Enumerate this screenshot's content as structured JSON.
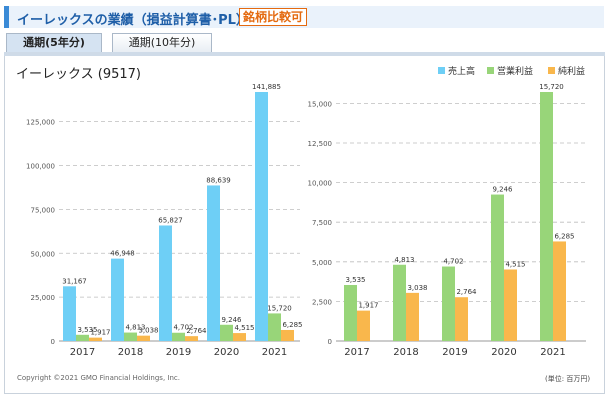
{
  "header": {
    "title": "イーレックスの業績（損益計算書･PL）",
    "compare_label": "銘柄比較可",
    "accent": "#3a8ad6"
  },
  "tabs": [
    {
      "label": "通期(5年分)",
      "active": true
    },
    {
      "label": "通期(10年分)",
      "active": false
    }
  ],
  "company": "イーレックス (9517)",
  "copyright": "Copyright ©2021 GMO Financial Holdings, Inc.",
  "unit_label": "(単位: 百万円)",
  "colors": {
    "sales": "#6ecff6",
    "operating": "#98d579",
    "net": "#f9b74c"
  },
  "chart_data": [
    {
      "type": "bar",
      "categories": [
        "2017",
        "2018",
        "2019",
        "2020",
        "2021"
      ],
      "series": [
        {
          "name": "売上高",
          "values": [
            31167,
            46948,
            65827,
            88639,
            141885
          ]
        },
        {
          "name": "営業利益",
          "values": [
            3535,
            4813,
            4702,
            9246,
            15720
          ]
        },
        {
          "name": "純利益",
          "values": [
            1917,
            3038,
            2764,
            4515,
            6285
          ]
        }
      ],
      "ylim": [
        0,
        141885
      ],
      "yticks": [
        0,
        25000,
        50000,
        75000,
        100000,
        125000
      ],
      "ytick_labels": [
        "0",
        "25,000",
        "50,000",
        "75,000",
        "100,000",
        "125,000"
      ],
      "value_labels": [
        [
          "31,167",
          "46,948",
          "65,827",
          "88,639",
          "141,885"
        ],
        [
          "3,535",
          "4,813",
          "4,702",
          "9,246",
          "15,720"
        ],
        [
          "1,917",
          "3,038",
          "2,764",
          "4,515",
          "6,285"
        ]
      ],
      "grid": true
    },
    {
      "type": "bar",
      "categories": [
        "2017",
        "2018",
        "2019",
        "2020",
        "2021"
      ],
      "series": [
        {
          "name": "営業利益",
          "values": [
            3535,
            4813,
            4702,
            9246,
            15720
          ]
        },
        {
          "name": "純利益",
          "values": [
            1917,
            3038,
            2764,
            4515,
            6285
          ]
        }
      ],
      "ylim": [
        0,
        15720
      ],
      "yticks": [
        0,
        2500,
        5000,
        7500,
        10000,
        12500,
        15000
      ],
      "ytick_labels": [
        "0",
        "2,500",
        "5,000",
        "7,500",
        "10,000",
        "12,500",
        "15,000"
      ],
      "value_labels": [
        [
          "3,535",
          "4,813",
          "4,702",
          "9,246",
          "15,720"
        ],
        [
          "1,917",
          "3,038",
          "2,764",
          "4,515",
          "6,285"
        ]
      ],
      "grid": true
    }
  ],
  "legend": [
    {
      "label": "売上高",
      "color": "#6ecff6"
    },
    {
      "label": "営業利益",
      "color": "#98d579"
    },
    {
      "label": "純利益",
      "color": "#f9b74c"
    }
  ]
}
